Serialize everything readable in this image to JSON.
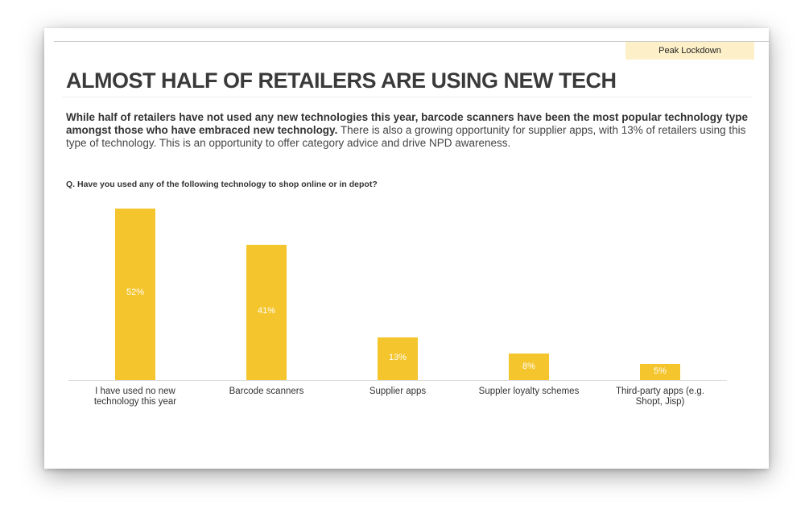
{
  "tag": "Peak Lockdown",
  "title": "ALMOST HALF OF RETAILERS ARE USING NEW TECH",
  "body_bold": "While half of retailers have not used any new technologies this year, barcode scanners have been the most popular technology type amongst those who have embraced new technology.",
  "body_rest": "  There is also a growing opportunity for supplier apps, with 13% of retailers using this type of technology.  This is an opportunity to offer category advice and drive NPD awareness.",
  "question": "Q. Have you used any of the following technology to shop online or in depot?",
  "chart_data": {
    "type": "bar",
    "categories": [
      "I have used no new technology this year",
      "Barcode scanners",
      "Supplier apps",
      "Suppler loyalty schemes",
      "Third-party apps (e.g. Shopt, Jisp)"
    ],
    "values": [
      52,
      41,
      13,
      8,
      5
    ],
    "labels": [
      "52%",
      "41%",
      "13%",
      "8%",
      "5%"
    ],
    "color": "#f4c52d",
    "ylim": [
      0,
      55
    ],
    "title": "",
    "xlabel": "",
    "ylabel": ""
  }
}
